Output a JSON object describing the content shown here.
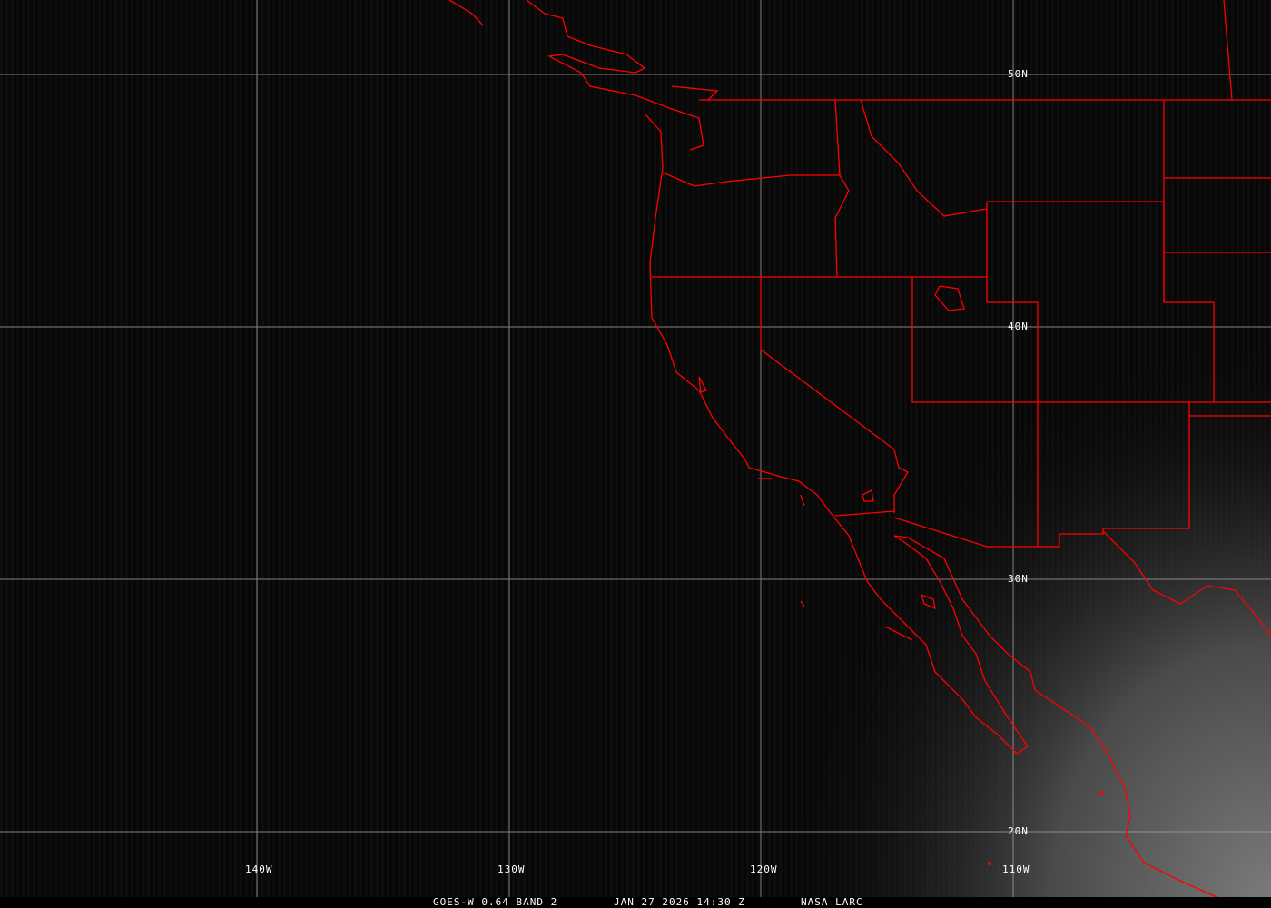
{
  "caption": {
    "satellite": "GOES-W 0.64 BAND 2",
    "datetime": "JAN 27 2026 14:30 Z",
    "source": "NASA LARC"
  },
  "latitude_labels": [
    "50N",
    "40N",
    "30N",
    "20N"
  ],
  "longitude_labels": [
    "140W",
    "130W",
    "120W",
    "110W"
  ],
  "colors": {
    "boundaries": "#ff0000",
    "grid": "#a0a0a0",
    "background": "#000000"
  }
}
